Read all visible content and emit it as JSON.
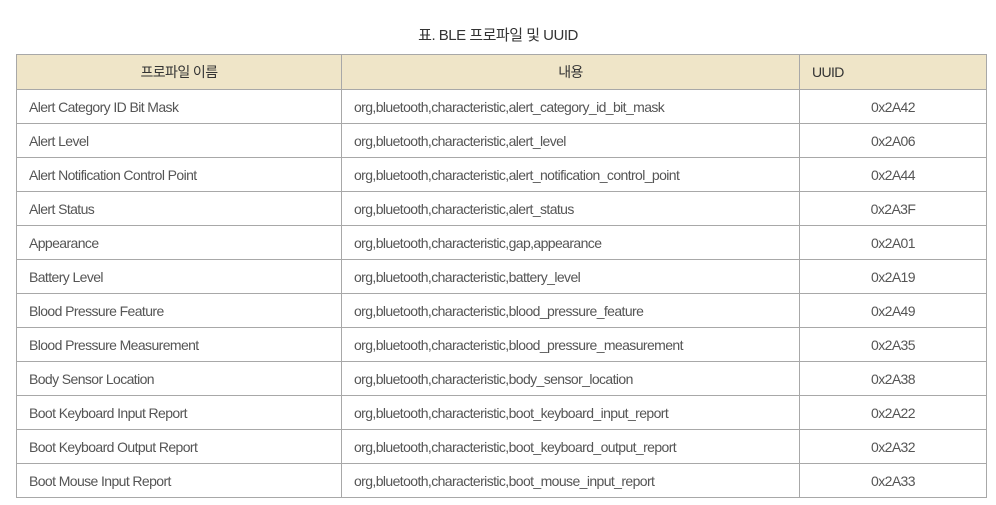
{
  "title": "표. BLE 프로파일 및 UUID",
  "headers": [
    "프로파일 이름",
    "내용",
    "UUID"
  ],
  "rows": [
    [
      "Alert Category ID Bit Mask",
      "org,bluetooth,characteristic,alert_category_id_bit_mask",
      "0x2A42"
    ],
    [
      "Alert Level",
      "org,bluetooth,characteristic,alert_level",
      "0x2A06"
    ],
    [
      "Alert Notification Control Point",
      "org,bluetooth,characteristic,alert_notification_control_point",
      "0x2A44"
    ],
    [
      "Alert Status",
      "org,bluetooth,characteristic,alert_status",
      "0x2A3F"
    ],
    [
      "Appearance",
      "org,bluetooth,characteristic,gap,appearance",
      "0x2A01"
    ],
    [
      "Battery Level",
      "org,bluetooth,characteristic,battery_level",
      "0x2A19"
    ],
    [
      "Blood Pressure Feature",
      "org,bluetooth,characteristic,blood_pressure_feature",
      "0x2A49"
    ],
    [
      "Blood Pressure Measurement",
      "org,bluetooth,characteristic,blood_pressure_measurement",
      "0x2A35"
    ],
    [
      "Body Sensor Location",
      "org,bluetooth,characteristic,body_sensor_location",
      "0x2A38"
    ],
    [
      "Boot Keyboard Input Report",
      "org,bluetooth,characteristic,boot_keyboard_input_report",
      "0x2A22"
    ],
    [
      "Boot Keyboard Output Report",
      "org,bluetooth,characteristic,boot_keyboard_output_report",
      "0x2A32"
    ],
    [
      "Boot Mouse Input Report",
      "org,bluetooth,characteristic,boot_mouse_input_report",
      "0x2A33"
    ]
  ]
}
